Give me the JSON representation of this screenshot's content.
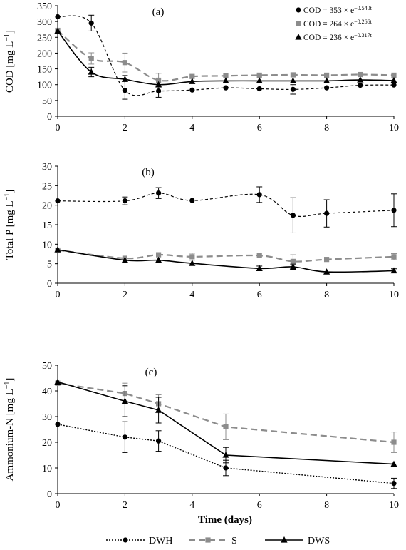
{
  "chart_data": [
    {
      "type": "line",
      "panel_label": "(a)",
      "ylabel": "COD  [mg L",
      "ylabel_exp": "−1",
      "ylabel_close": "]",
      "xlim": [
        0,
        10
      ],
      "ylim": [
        0,
        350
      ],
      "xticks": [
        "0",
        "2",
        "4",
        "6",
        "8",
        "10"
      ],
      "yticks": [
        "0",
        "50",
        "100",
        "150",
        "200",
        "250",
        "300",
        "350"
      ],
      "series": [
        {
          "key": "dwh",
          "x": [
            0,
            1,
            2,
            3,
            4,
            5,
            6,
            7,
            8,
            9,
            10
          ],
          "y": [
            315,
            295,
            82,
            80,
            83,
            90,
            87,
            85,
            90,
            98,
            99
          ],
          "err": [
            0,
            25,
            28,
            20,
            0,
            0,
            0,
            15,
            0,
            0,
            0
          ]
        },
        {
          "key": "s",
          "x": [
            0,
            1,
            2,
            3,
            4,
            5,
            6,
            7,
            8,
            9,
            10
          ],
          "y": [
            272,
            183,
            170,
            114,
            126,
            128,
            130,
            131,
            130,
            132,
            130
          ],
          "err": [
            0,
            18,
            30,
            22,
            0,
            0,
            0,
            0,
            0,
            0,
            0
          ]
        },
        {
          "key": "dws",
          "x": [
            0,
            1,
            2,
            3,
            4,
            5,
            6,
            7,
            8,
            9,
            10
          ],
          "y": [
            270,
            140,
            117,
            100,
            110,
            112,
            112,
            112,
            112,
            115,
            113
          ],
          "err": [
            0,
            15,
            12,
            0,
            0,
            0,
            0,
            0,
            0,
            0,
            0
          ]
        }
      ],
      "equations": [
        {
          "marker": "circle",
          "prefix": "COD = 353 × e",
          "exp": "−0.540t"
        },
        {
          "marker": "square",
          "prefix": "COD = 264 × e",
          "exp": "−0.266t"
        },
        {
          "marker": "triangle",
          "prefix": "COD = 236 × e",
          "exp": "−0.317t"
        }
      ]
    },
    {
      "type": "line",
      "panel_label": "(b)",
      "ylabel": "Total P  [mg L",
      "ylabel_exp": "−1",
      "ylabel_close": "]",
      "xlim": [
        0,
        10
      ],
      "ylim": [
        0,
        30
      ],
      "xticks": [
        "0",
        "2",
        "4",
        "6",
        "8",
        "10"
      ],
      "yticks": [
        "0",
        "5",
        "10",
        "15",
        "20",
        "25",
        "30"
      ],
      "series": [
        {
          "key": "dwh",
          "x": [
            0,
            2,
            3,
            4,
            6,
            7,
            8,
            10
          ],
          "y": [
            21.1,
            21.1,
            23.1,
            21.2,
            22.7,
            17.4,
            17.9,
            18.7
          ],
          "err": [
            0,
            1.0,
            1.4,
            0,
            2.0,
            4.5,
            3.5,
            4.2
          ]
        },
        {
          "key": "s",
          "x": [
            0,
            2,
            3,
            4,
            6,
            7,
            8,
            10
          ],
          "y": [
            8.5,
            6.4,
            7.3,
            6.8,
            7.1,
            5.6,
            6.1,
            6.8
          ],
          "err": [
            0,
            0,
            0,
            0.9,
            0,
            1.7,
            0,
            0.8
          ]
        },
        {
          "key": "dws",
          "x": [
            0,
            2,
            3,
            4,
            6,
            7,
            8,
            10
          ],
          "y": [
            8.6,
            5.9,
            5.9,
            5.1,
            3.8,
            4.2,
            2.9,
            3.2
          ],
          "err": [
            0,
            0,
            0,
            0,
            0.6,
            0.7,
            0,
            0.5
          ]
        }
      ]
    },
    {
      "type": "line",
      "panel_label": "(c)",
      "ylabel": "Ammonium-N  [mg L",
      "ylabel_exp": "−1",
      "ylabel_close": "]",
      "xlabel": "Time (days)",
      "xlim": [
        0,
        10
      ],
      "ylim": [
        0,
        50
      ],
      "xticks": [
        "0",
        "2",
        "4",
        "6",
        "8",
        "10"
      ],
      "yticks": [
        "0",
        "10",
        "20",
        "30",
        "40",
        "50"
      ],
      "series": [
        {
          "key": "dwh",
          "x": [
            0,
            2,
            3,
            5,
            10
          ],
          "y": [
            27,
            22,
            20.5,
            10,
            4
          ],
          "err": [
            0,
            6,
            4,
            3,
            2
          ]
        },
        {
          "key": "s",
          "x": [
            0,
            2,
            3,
            5,
            10
          ],
          "y": [
            43,
            39,
            35,
            26,
            20
          ],
          "err": [
            0,
            4,
            3.5,
            5,
            4
          ]
        },
        {
          "key": "dws",
          "x": [
            0,
            2,
            3,
            5,
            10
          ],
          "y": [
            43.5,
            36,
            32.5,
            15,
            11.5
          ],
          "err": [
            0,
            6,
            5,
            3,
            0
          ]
        }
      ]
    }
  ],
  "legend": {
    "placement": "bottom",
    "items": [
      {
        "key": "dwh",
        "label": "DWH"
      },
      {
        "key": "s",
        "label": "S"
      },
      {
        "key": "dws",
        "label": "DWS"
      }
    ]
  },
  "styles": {
    "dwh": {
      "color": "#000000",
      "marker": "circle",
      "dash_ab": "4,3",
      "dash_c": "2,2",
      "width_ab": 1.2,
      "width_c": 1.4
    },
    "s": {
      "color": "#8c8c8c",
      "marker": "square",
      "dash": "9,5",
      "width": 2.2
    },
    "dws": {
      "color": "#000000",
      "marker": "triangle",
      "dash": "",
      "width": 1.6
    }
  }
}
